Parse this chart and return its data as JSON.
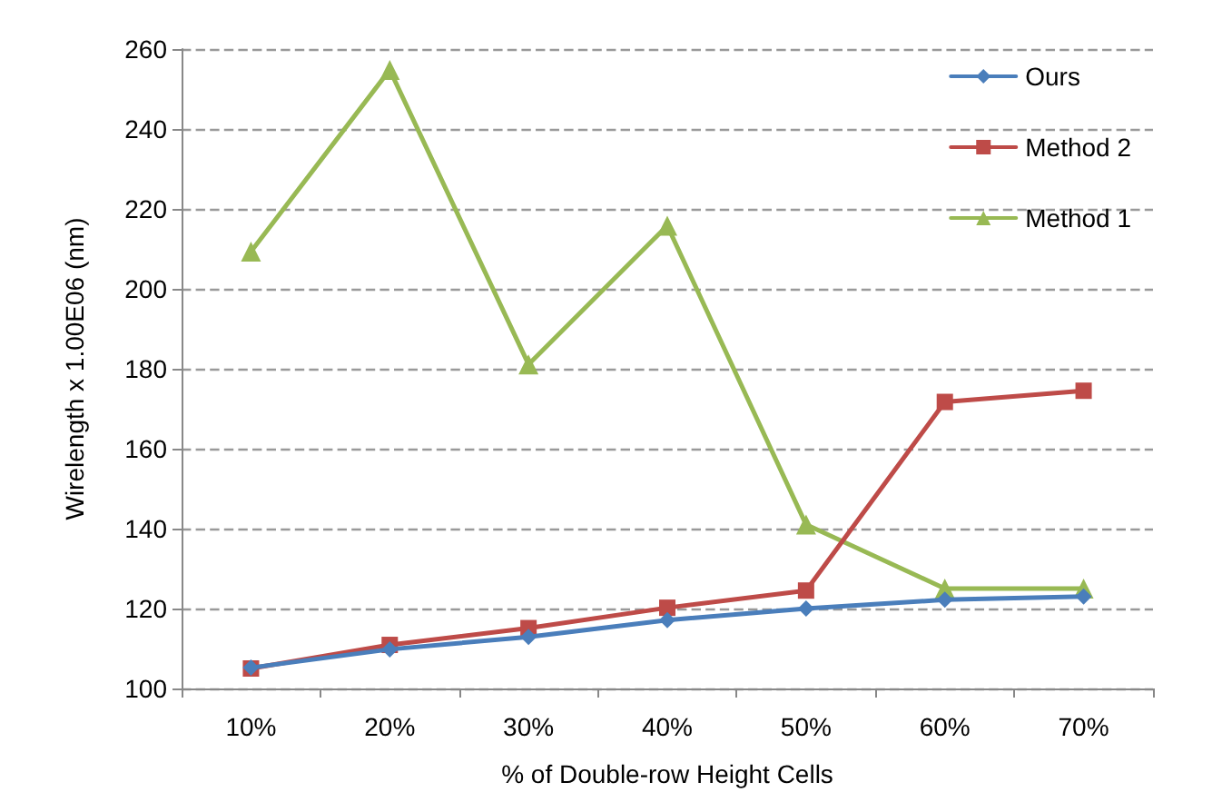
{
  "chart_data": {
    "type": "line",
    "xlabel": "% of Double-row Height Cells",
    "ylabel": "Wirelength x 1.00E06 (nm)",
    "categories": [
      "10%",
      "20%",
      "30%",
      "40%",
      "50%",
      "60%",
      "70%"
    ],
    "series": [
      {
        "name": "Ours",
        "color": "#4a7ebb",
        "marker": "diamond",
        "values": [
          105.2,
          109.8,
          112.9,
          117.1,
          120,
          122.2,
          123
        ]
      },
      {
        "name": "Method 2",
        "color": "#be4b48",
        "marker": "square",
        "values": [
          105,
          110.9,
          115.1,
          120.2,
          124.5,
          171.7,
          174.5
        ]
      },
      {
        "name": "Method 1",
        "color": "#98b954",
        "marker": "triangle",
        "values": [
          209.3,
          254.8,
          181.1,
          215.8,
          141,
          125,
          125
        ]
      }
    ],
    "ylim": [
      100,
      260
    ],
    "yticks": [
      100,
      120,
      140,
      160,
      180,
      200,
      220,
      240,
      260
    ],
    "grid": "y",
    "legend": "top right",
    "line_style": "solid"
  }
}
